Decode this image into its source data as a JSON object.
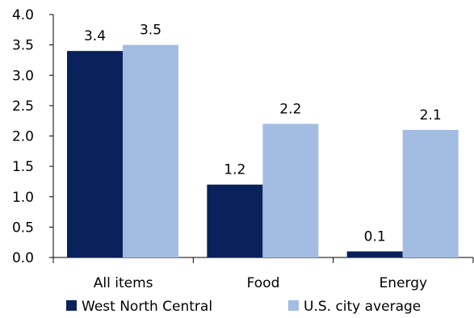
{
  "chart_data": {
    "type": "bar",
    "title": "",
    "xlabel": "",
    "ylabel": "",
    "categories": [
      "All items",
      "Food",
      "Energy"
    ],
    "series": [
      {
        "name": "West North Central",
        "values": [
          3.4,
          1.2,
          0.1
        ],
        "labels": [
          "3.4",
          "1.2",
          "0.1"
        ],
        "color": "#0a225b"
      },
      {
        "name": "U.S. city average",
        "values": [
          3.5,
          2.2,
          2.1
        ],
        "labels": [
          "3.5",
          "2.2",
          "2.1"
        ],
        "color": "#a3bde2"
      }
    ],
    "ylim": [
      0.0,
      4.0
    ],
    "yticks": [
      "0.0",
      "0.5",
      "1.0",
      "1.5",
      "2.0",
      "2.5",
      "3.0",
      "3.5",
      "4.0"
    ],
    "grid": false,
    "legend_position": "bottom"
  }
}
